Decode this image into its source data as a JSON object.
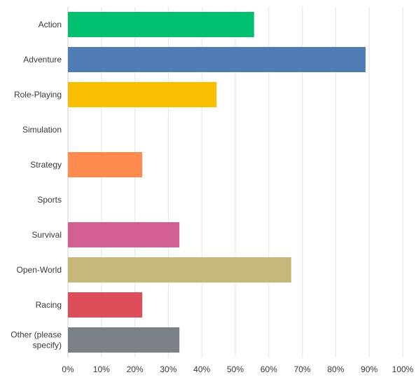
{
  "chart_data": {
    "type": "bar",
    "orientation": "horizontal",
    "categories": [
      "Action",
      "Adventure",
      "Role-Playing",
      "Simulation",
      "Strategy",
      "Sports",
      "Survival",
      "Open-World",
      "Racing",
      "Other (please specify)"
    ],
    "values": [
      55.6,
      88.9,
      44.4,
      0,
      22.2,
      0,
      33.3,
      66.7,
      22.2,
      33.3
    ],
    "colors": [
      "#00bf6f",
      "#507cb6",
      "#f9be00",
      "#6bc8cd",
      "#ff8b4f",
      "#7f7ebf",
      "#d25f90",
      "#c7b879",
      "#de4e5a",
      "#7b8086"
    ],
    "x_ticks": [
      "0%",
      "10%",
      "20%",
      "30%",
      "40%",
      "50%",
      "60%",
      "70%",
      "80%",
      "90%",
      "100%"
    ],
    "xlim": [
      0,
      100
    ],
    "x_unit": "%",
    "grid": true,
    "legend": "none"
  }
}
